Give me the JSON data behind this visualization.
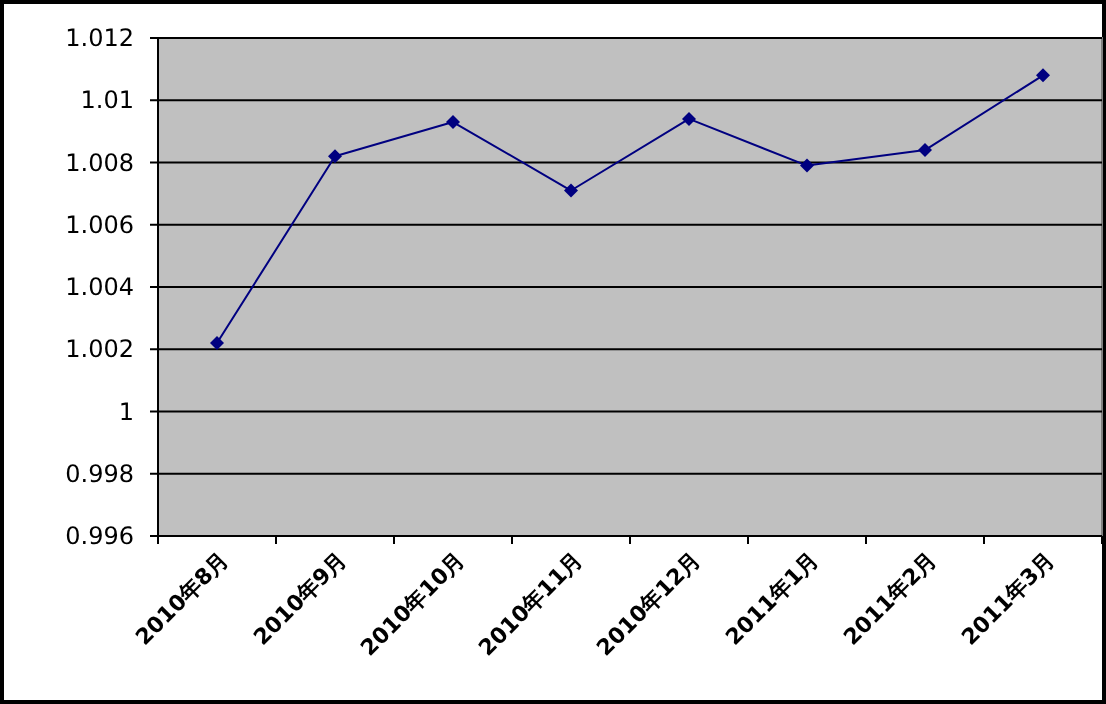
{
  "chart_data": {
    "type": "line",
    "categories": [
      "2010年8月",
      "2010年9月",
      "2010年10月",
      "2010年11月",
      "2010年12月",
      "2011年1月",
      "2011年2月",
      "2011年3月"
    ],
    "values": [
      1.0022,
      1.0082,
      1.0093,
      1.0071,
      1.0094,
      1.0079,
      1.0084,
      1.0108
    ],
    "color": "#000080",
    "marker": "diamond",
    "ylim": [
      0.996,
      1.012
    ],
    "yticks": [
      0.996,
      0.998,
      1,
      1.002,
      1.004,
      1.006,
      1.008,
      1.01,
      1.012
    ],
    "grid": "y"
  }
}
